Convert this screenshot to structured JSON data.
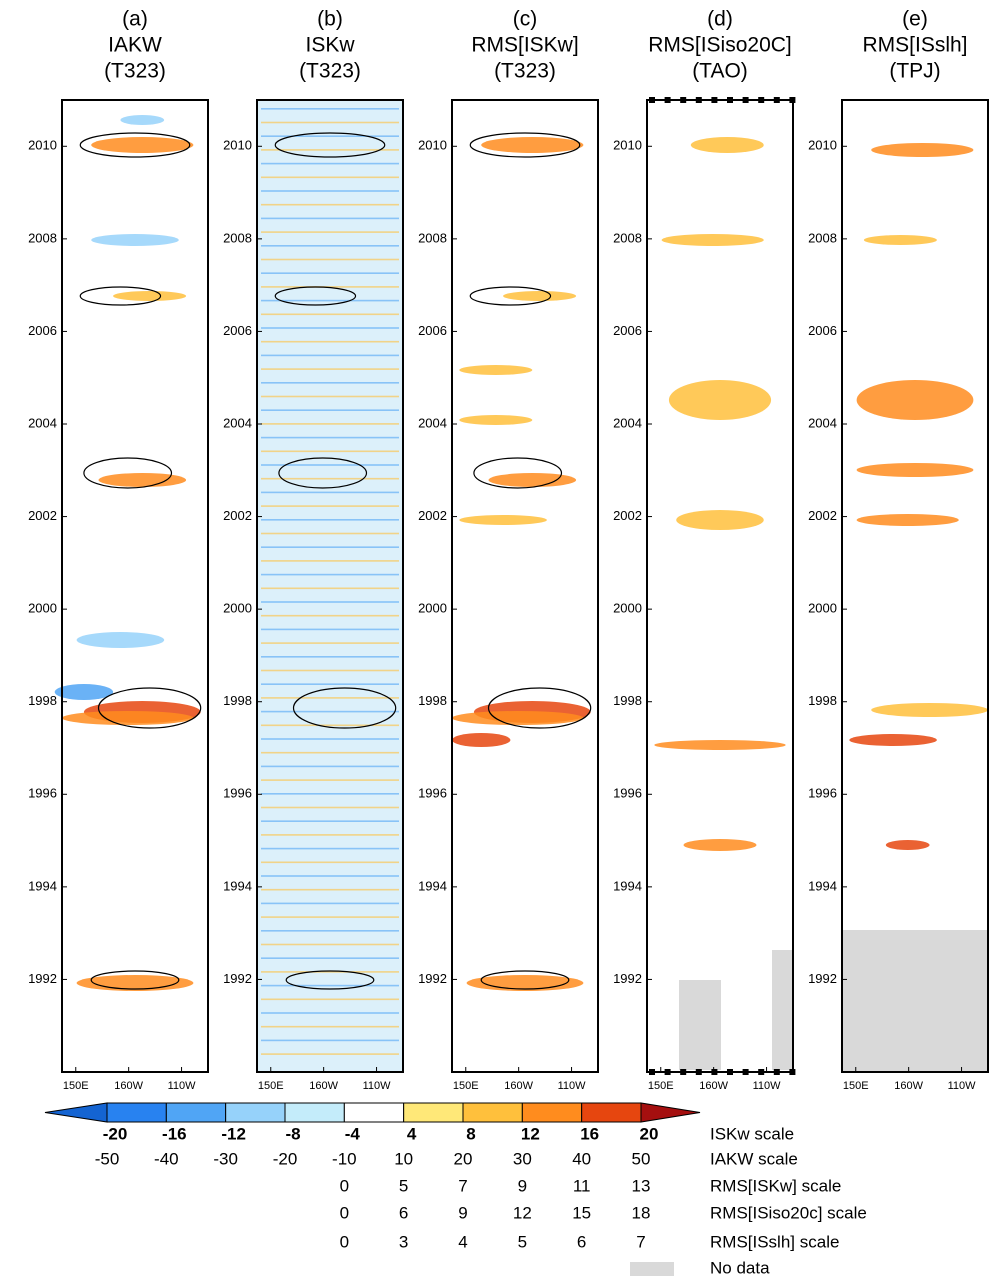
{
  "panels": [
    {
      "label": "(a)",
      "title": "IAKW",
      "subtitle": "(T323)"
    },
    {
      "label": "(b)",
      "title": "ISKw",
      "subtitle": "(T323)"
    },
    {
      "label": "(c)",
      "title": "RMS[ISKw]",
      "subtitle": "(T323)"
    },
    {
      "label": "(d)",
      "title": "RMS[ISiso20C]",
      "subtitle": "(TAO)"
    },
    {
      "label": "(e)",
      "title": "RMS[ISslh]",
      "subtitle": "(TPJ)"
    }
  ],
  "ylim": [
    1990,
    2011
  ],
  "yticks": [
    1992,
    1994,
    1996,
    1998,
    2000,
    2002,
    2004,
    2006,
    2008,
    2010
  ],
  "xlim": [
    137,
    275
  ],
  "xticks": [
    {
      "value": 150,
      "label": "150E"
    },
    {
      "value": 200,
      "label": "160W"
    },
    {
      "value": 250,
      "label": "110W"
    }
  ],
  "colorbar": {
    "colors": [
      "#1464d2",
      "#2882f0",
      "#50a5f5",
      "#96d2fa",
      "#c4ecfa",
      "#ffffff",
      "#ffe878",
      "#ffc03c",
      "#ff8c1e",
      "#e6460f",
      "#a50f0f"
    ],
    "scales": [
      {
        "name": "ISKw scale",
        "values": [
          -20,
          -16,
          -12,
          -8,
          -4,
          4,
          8,
          12,
          16,
          20
        ]
      },
      {
        "name": "IAKW scale",
        "values": [
          -50,
          -40,
          -30,
          -20,
          -10,
          10,
          20,
          30,
          40,
          50
        ]
      },
      {
        "name": "RMS[ISKw] scale",
        "values": [
          0,
          5,
          7,
          9,
          11,
          13
        ]
      },
      {
        "name": "RMS[ISiso20c] scale",
        "values": [
          0,
          6,
          9,
          12,
          15,
          18
        ]
      },
      {
        "name": "RMS[ISslh] scale",
        "values": [
          0,
          3,
          4,
          5,
          6,
          7
        ]
      }
    ],
    "no_data": "No data",
    "no_data_color": "#d9d9d9"
  }
}
